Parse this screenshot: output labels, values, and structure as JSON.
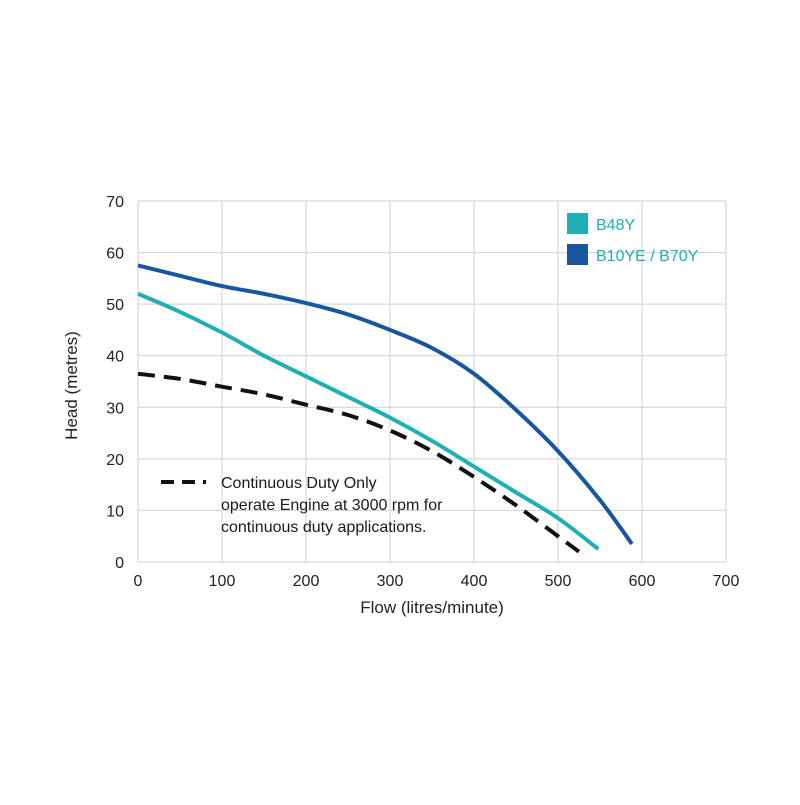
{
  "chart_data": {
    "type": "line",
    "title": "",
    "xlabel": "Flow (litres/minute)",
    "ylabel": "Head (metres)",
    "xlim": [
      0,
      700
    ],
    "ylim": [
      0,
      70
    ],
    "x_ticks": [
      0,
      100,
      200,
      300,
      400,
      500,
      600,
      700
    ],
    "y_ticks": [
      0,
      10,
      20,
      30,
      40,
      50,
      60,
      70
    ],
    "grid": true,
    "legend_position": "top-right",
    "series": [
      {
        "name": "B48Y",
        "color": "#1fb0b5",
        "style": "solid",
        "points": [
          [
            0,
            52
          ],
          [
            50,
            48.5
          ],
          [
            100,
            44.5
          ],
          [
            150,
            40
          ],
          [
            200,
            36
          ],
          [
            250,
            32
          ],
          [
            300,
            28
          ],
          [
            350,
            23.5
          ],
          [
            400,
            18.5
          ],
          [
            450,
            13.5
          ],
          [
            500,
            8.5
          ],
          [
            548,
            2.5
          ]
        ]
      },
      {
        "name": "B10YE / B70Y",
        "color": "#1a56a0",
        "style": "solid",
        "points": [
          [
            0,
            57.5
          ],
          [
            50,
            55.5
          ],
          [
            100,
            53.5
          ],
          [
            150,
            52
          ],
          [
            200,
            50.2
          ],
          [
            250,
            48
          ],
          [
            300,
            45
          ],
          [
            350,
            41.5
          ],
          [
            400,
            36.5
          ],
          [
            450,
            29.5
          ],
          [
            500,
            21.5
          ],
          [
            550,
            12
          ],
          [
            588,
            3.5
          ]
        ]
      },
      {
        "name": "",
        "color": "#111111",
        "style": "dashed",
        "points": [
          [
            0,
            36.5
          ],
          [
            50,
            35.5
          ],
          [
            100,
            34
          ],
          [
            150,
            32.5
          ],
          [
            200,
            30.5
          ],
          [
            250,
            28.5
          ],
          [
            300,
            25.5
          ],
          [
            350,
            21.5
          ],
          [
            400,
            16.5
          ],
          [
            450,
            11
          ],
          [
            500,
            5
          ],
          [
            525,
            2
          ]
        ]
      }
    ],
    "annotation": {
      "lines": [
        "Continuous Duty Only",
        "operate Engine at 3000 rpm for",
        "continuous duty applications."
      ],
      "line_style": "dashed"
    }
  }
}
